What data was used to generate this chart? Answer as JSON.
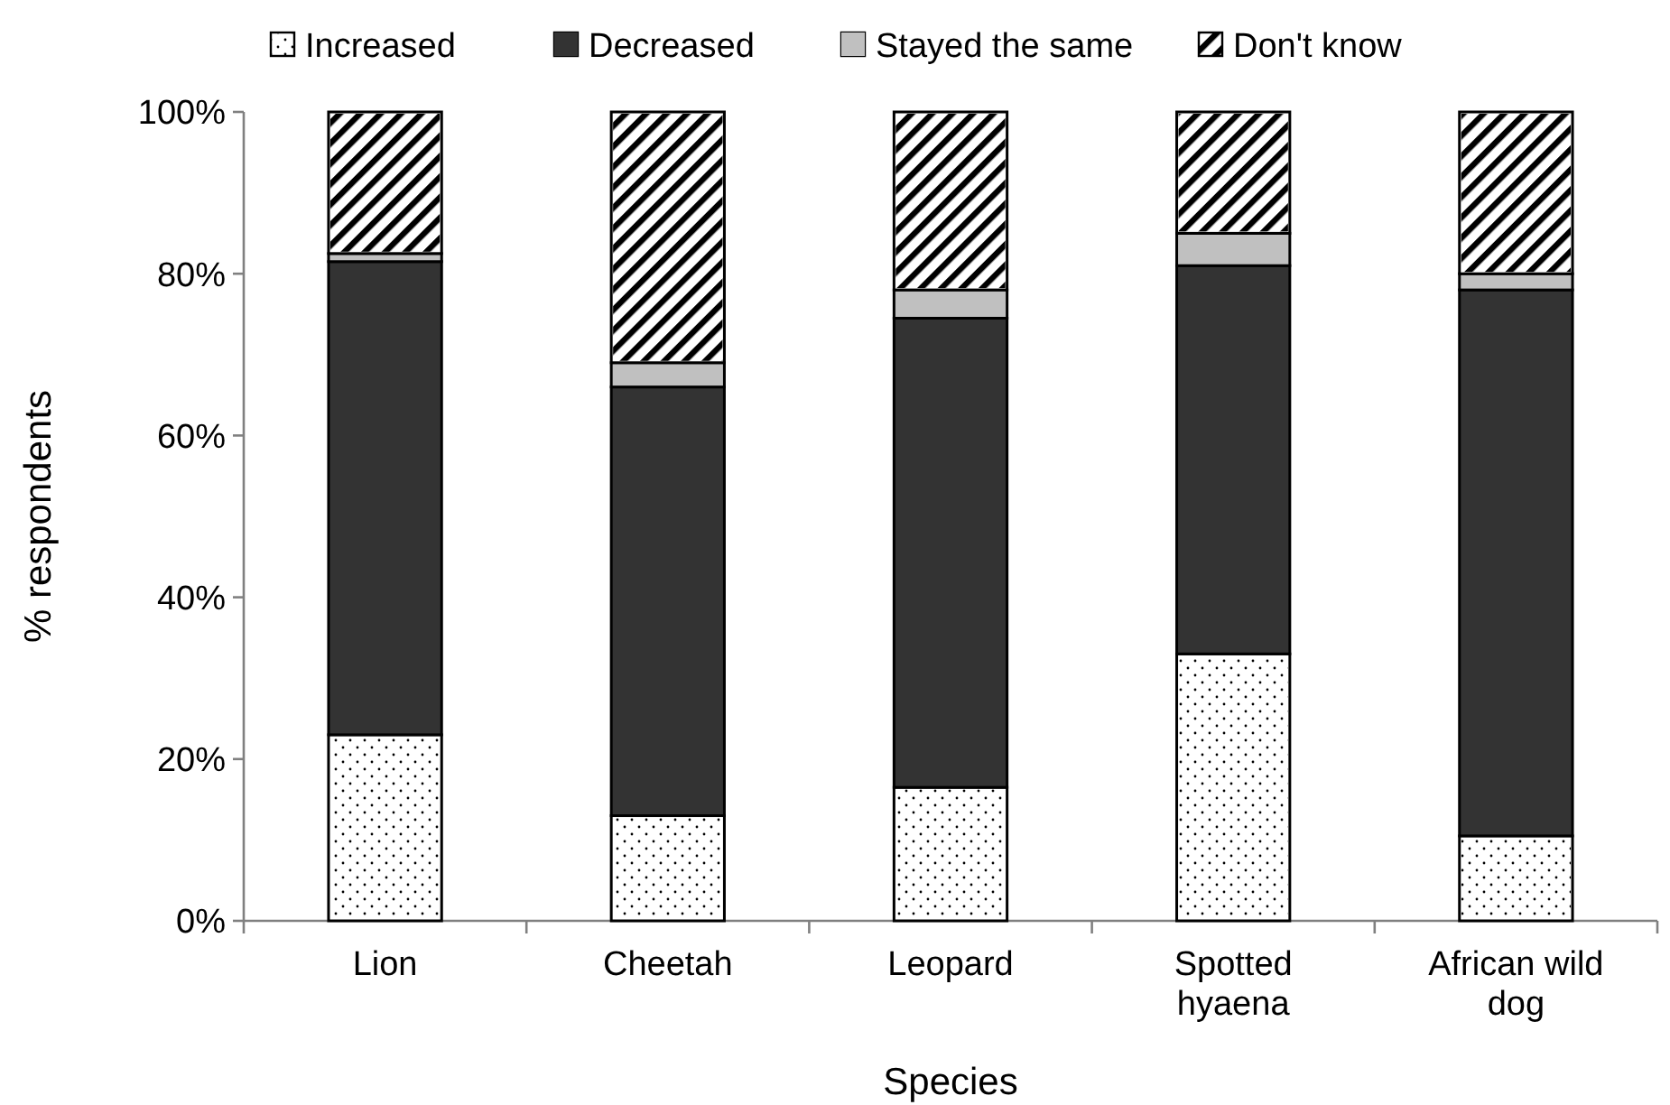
{
  "chart_data": {
    "type": "bar",
    "stacked": true,
    "xlabel": "Species",
    "ylabel": "% respondents",
    "categories": [
      "Lion",
      "Cheetah",
      "Leopard",
      "Spotted hyaena",
      "African wild dog"
    ],
    "series": [
      {
        "name": "Increased",
        "color": "#ffffff",
        "values": [
          23,
          13,
          16.5,
          33,
          10.5
        ]
      },
      {
        "name": "Decreased",
        "color": "#333333",
        "values": [
          58.5,
          53,
          58,
          48,
          67.5
        ]
      },
      {
        "name": "Stayed the same",
        "color": "#c0c0c0",
        "values": [
          1,
          3,
          3.5,
          4,
          2
        ]
      },
      {
        "name": "Don't know",
        "color": "#ffffff",
        "values": [
          17.5,
          31,
          22,
          15,
          20
        ]
      }
    ],
    "ylim": [
      0,
      100
    ],
    "yticks": [
      {
        "value": 0,
        "label": "0%"
      },
      {
        "value": 20,
        "label": "20%"
      },
      {
        "value": 40,
        "label": "40%"
      },
      {
        "value": 60,
        "label": "60%"
      },
      {
        "value": 80,
        "label": "80%"
      },
      {
        "value": 100,
        "label": "100%"
      }
    ],
    "grid": false,
    "legend": "top"
  }
}
